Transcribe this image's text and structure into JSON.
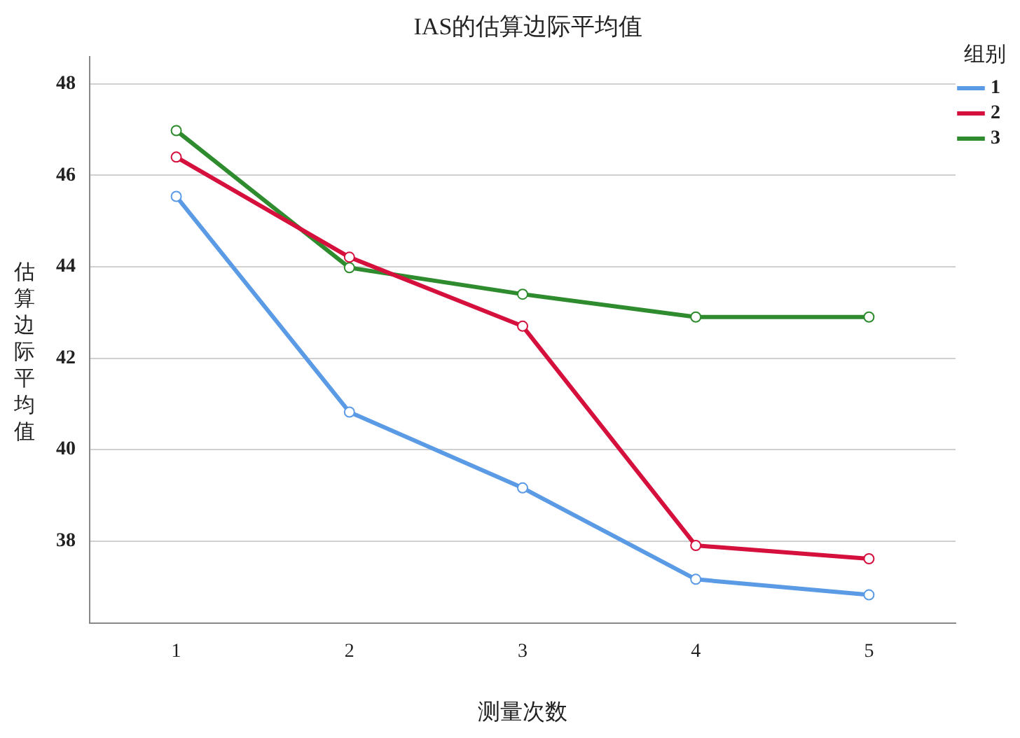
{
  "chart_data": {
    "type": "line",
    "title": "IAS的估算边际平均值",
    "xlabel": "测量次数",
    "ylabel": "估算边际平均值",
    "legend_title": "组别",
    "categories": [
      "1",
      "2",
      "3",
      "4",
      "5"
    ],
    "series": [
      {
        "name": "1",
        "color": "#5b9be6",
        "values": [
          45.54,
          40.82,
          39.16,
          37.16,
          36.82
        ]
      },
      {
        "name": "2",
        "color": "#d6103c",
        "values": [
          46.4,
          44.21,
          42.7,
          37.9,
          37.61
        ]
      },
      {
        "name": "3",
        "color": "#2e8b2e",
        "values": [
          46.98,
          43.98,
          43.4,
          42.9,
          42.9
        ]
      }
    ],
    "ylim": [
      36.2,
      48.6
    ],
    "yticks": [
      38,
      40,
      42,
      44,
      46,
      48
    ],
    "grid": "y",
    "legend": "top right",
    "marker": "circle",
    "line_style": "solid"
  }
}
